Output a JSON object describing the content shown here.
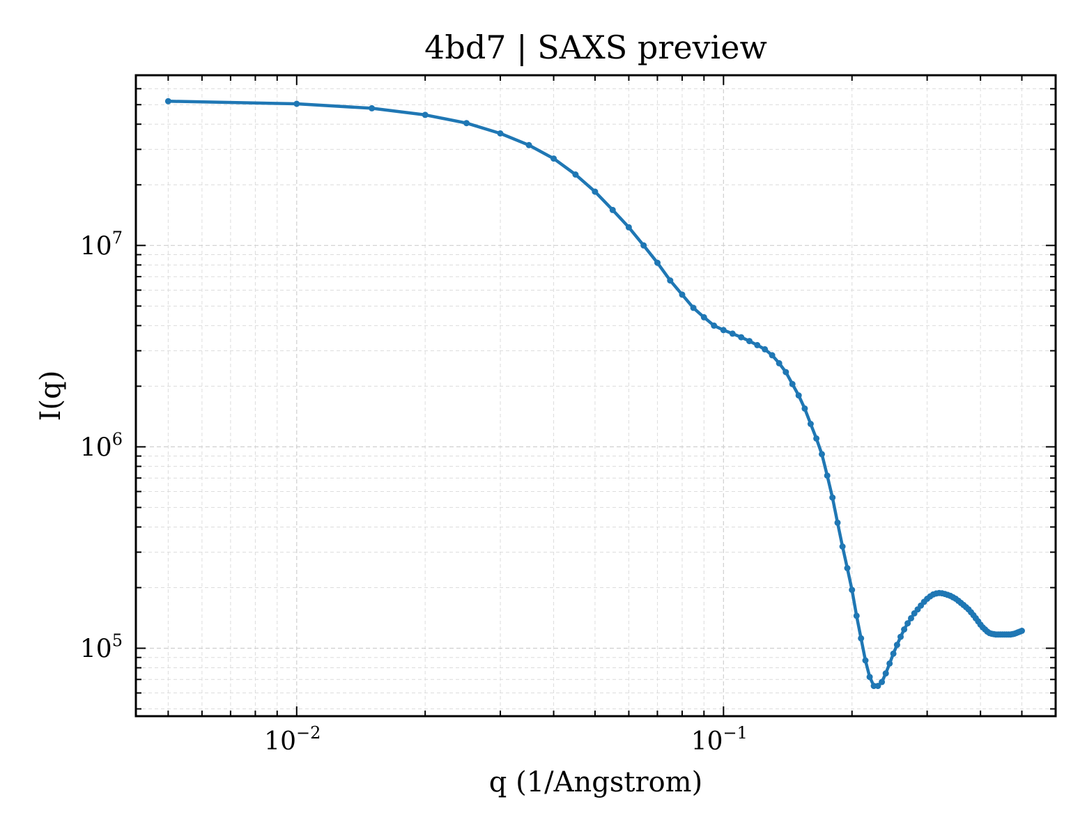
{
  "chart_data": {
    "type": "line",
    "title": "4bd7 | SAXS preview",
    "xlabel": "q (1/Angstrom)",
    "ylabel": "I(q)",
    "xscale": "log",
    "yscale": "log",
    "xlim": [
      0.0042,
      0.6
    ],
    "ylim": [
      46000,
      70000000
    ],
    "grid": true,
    "legend": "none",
    "x_ticks": [
      {
        "base": "10",
        "exp": "−2",
        "value": 0.01
      },
      {
        "base": "10",
        "exp": "−1",
        "value": 0.1
      }
    ],
    "y_ticks": [
      {
        "base": "10",
        "exp": "5",
        "value": 100000
      },
      {
        "base": "10",
        "exp": "6",
        "value": 1000000
      },
      {
        "base": "10",
        "exp": "7",
        "value": 10000000
      }
    ],
    "series": [
      {
        "color": "#1f77b4",
        "x": [
          0.005,
          0.01,
          0.015,
          0.02,
          0.025,
          0.03,
          0.035,
          0.04,
          0.045,
          0.05,
          0.055,
          0.06,
          0.065,
          0.07,
          0.075,
          0.08,
          0.085,
          0.09,
          0.095,
          0.1,
          0.105,
          0.11,
          0.115,
          0.12,
          0.125,
          0.13,
          0.135,
          0.14,
          0.145,
          0.15,
          0.155,
          0.16,
          0.165,
          0.17,
          0.175,
          0.18,
          0.185,
          0.19,
          0.195,
          0.2,
          0.205,
          0.21,
          0.215,
          0.22,
          0.225,
          0.23,
          0.235,
          0.24,
          0.245,
          0.25,
          0.255,
          0.26,
          0.265,
          0.27,
          0.275,
          0.28,
          0.285,
          0.29,
          0.295,
          0.3,
          0.305,
          0.31,
          0.315,
          0.32,
          0.325,
          0.33,
          0.335,
          0.34,
          0.345,
          0.35,
          0.355,
          0.36,
          0.365,
          0.37,
          0.375,
          0.38,
          0.385,
          0.39,
          0.395,
          0.4,
          0.405,
          0.41,
          0.415,
          0.42,
          0.425,
          0.43,
          0.435,
          0.44,
          0.445,
          0.45,
          0.455,
          0.46,
          0.465,
          0.47,
          0.475,
          0.48,
          0.485,
          0.49,
          0.495,
          0.5
        ],
        "y": [
          52000000,
          50500000,
          48000000,
          44500000,
          40500000,
          36000000,
          31500000,
          27000000,
          22500000,
          18500000,
          15000000,
          12300000,
          10000000,
          8200000,
          6700000,
          5700000,
          4900000,
          4400000,
          4000000,
          3800000,
          3650000,
          3500000,
          3350000,
          3200000,
          3050000,
          2850000,
          2600000,
          2350000,
          2050000,
          1800000,
          1550000,
          1300000,
          1100000,
          920000,
          720000,
          560000,
          420000,
          320000,
          250000,
          195000,
          145000,
          112000,
          87000,
          72000,
          65000,
          65000,
          68000,
          75000,
          84000,
          94000,
          104000,
          114000,
          124000,
          133000,
          141000,
          149000,
          156000,
          163000,
          170000,
          176000,
          181000,
          185000,
          187000,
          188000,
          187500,
          186000,
          184000,
          182000,
          179000,
          176000,
          172000,
          168000,
          164000,
          160000,
          156000,
          151000,
          146000,
          141000,
          136000,
          131000,
          127000,
          124000,
          121000,
          119000,
          118000,
          117500,
          117000,
          117000,
          117000,
          117000,
          117000,
          117000,
          117000,
          117000,
          117500,
          118000,
          119000,
          120000,
          121000,
          122000
        ]
      }
    ]
  }
}
